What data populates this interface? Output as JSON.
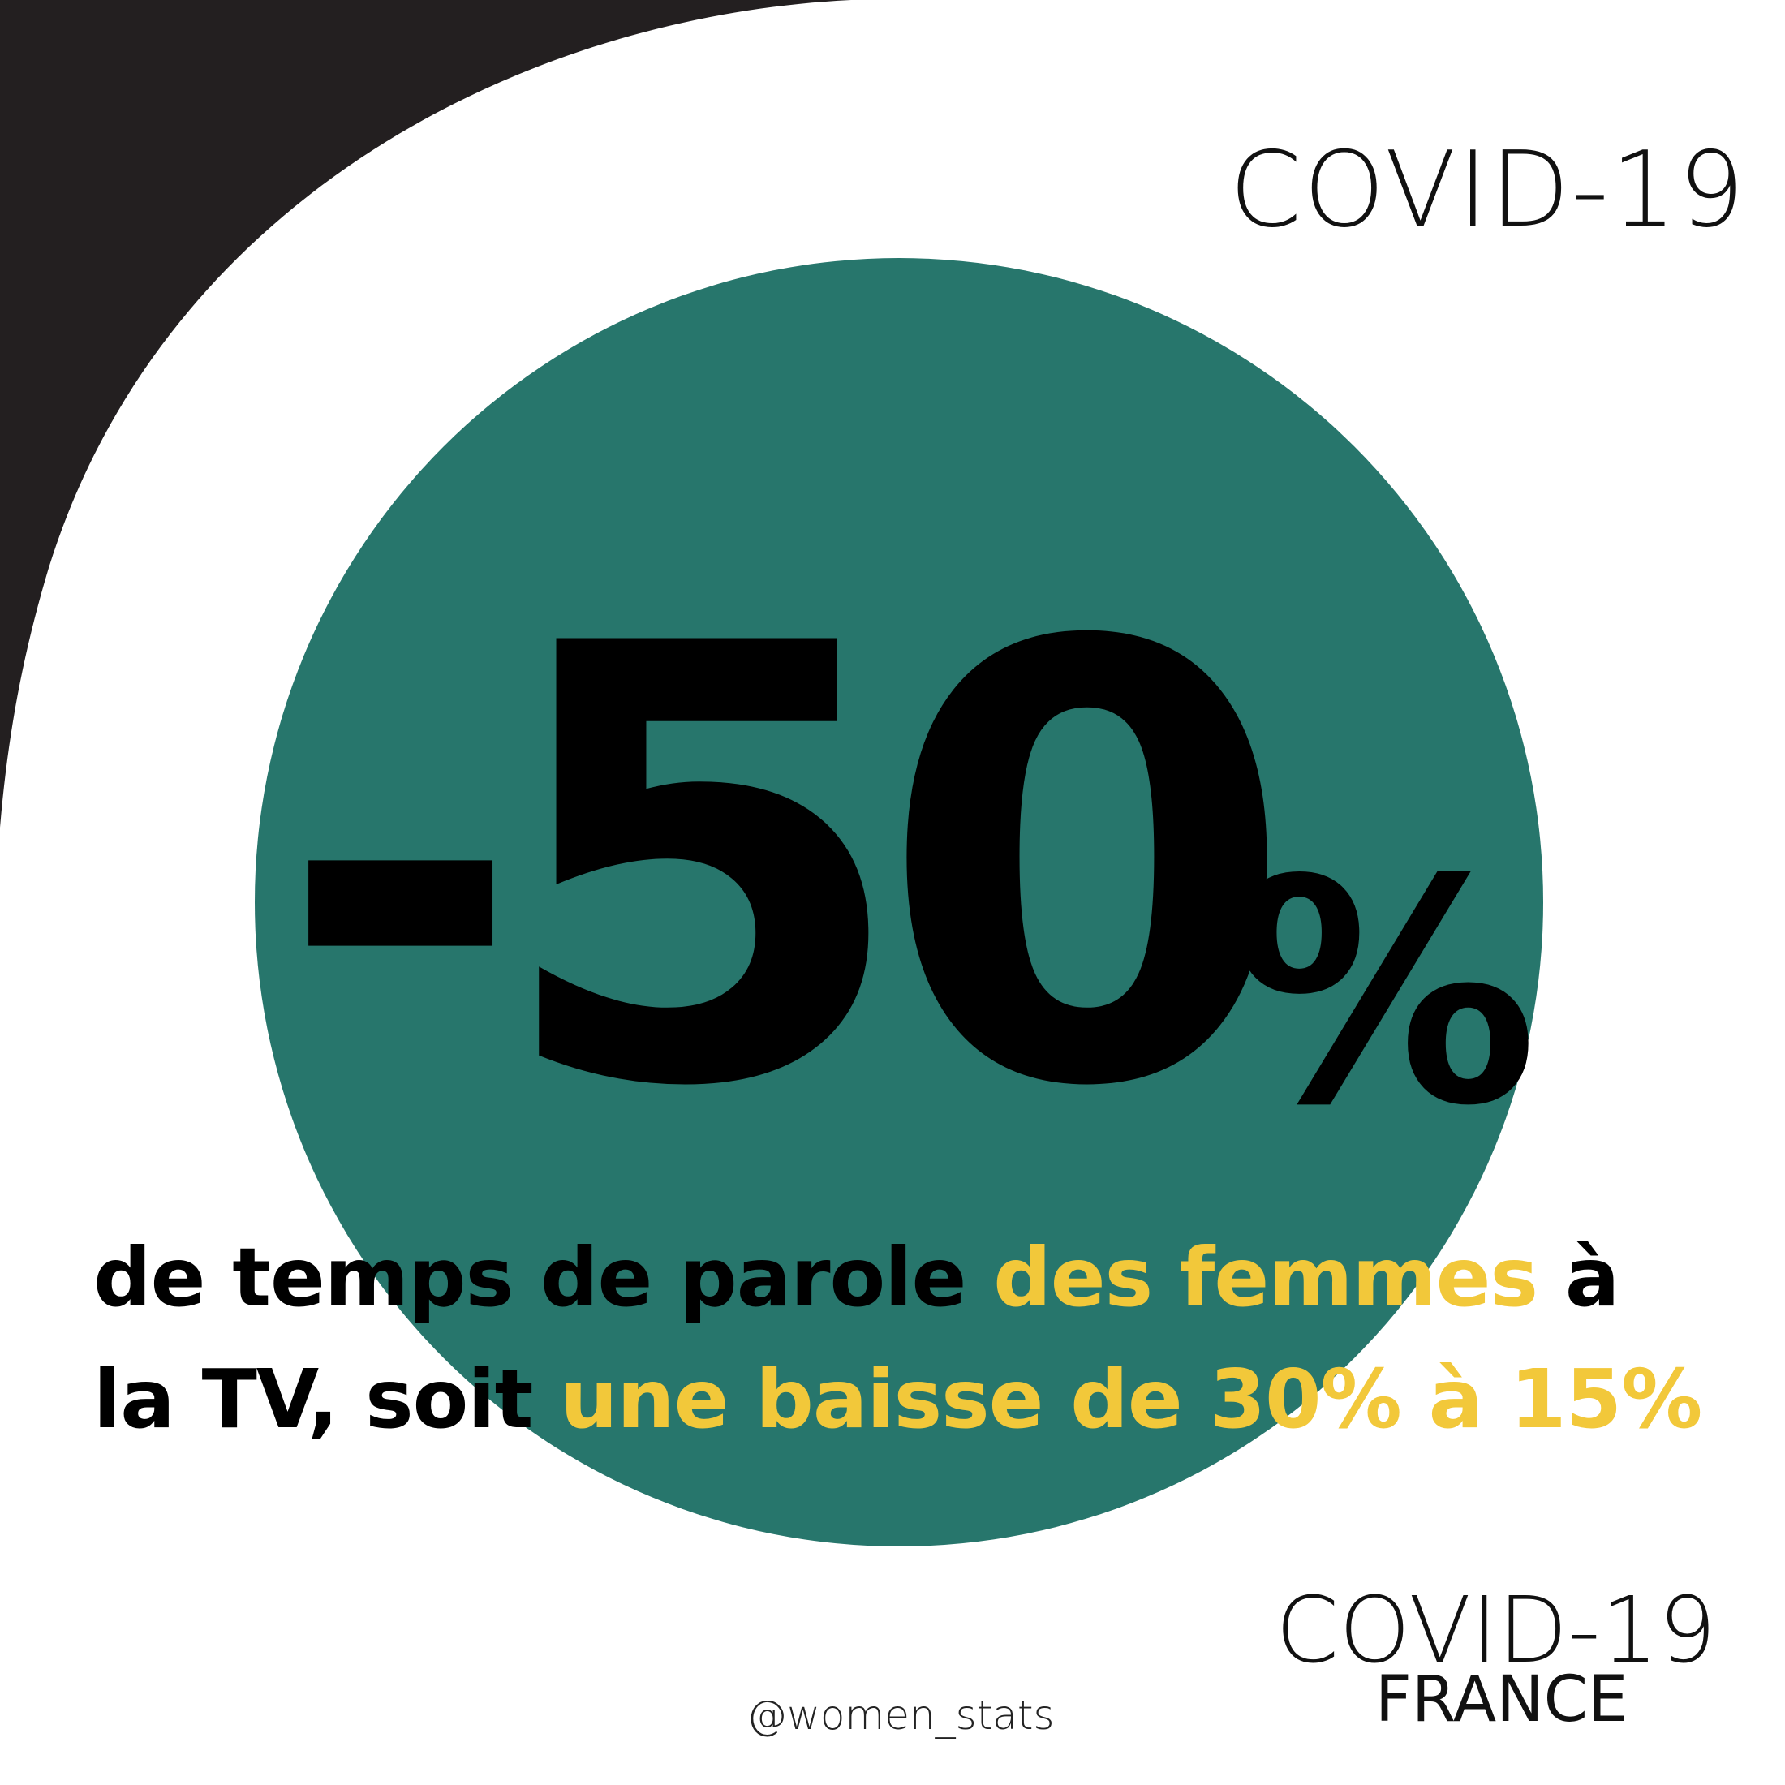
{
  "colors": {
    "teal": "#27766c",
    "yellow": "#f2c83a",
    "black": "#231f20",
    "background": "#ffffff"
  },
  "header": {
    "title": "COVID-19"
  },
  "stat": {
    "value": "-50",
    "unit": "%"
  },
  "description": {
    "line1_black": "de temps de parole ",
    "line1_yellow": "des femmes",
    "line1_end": " à",
    "line2_black": "la TV, soit ",
    "line2_yellow": "une baisse de 30% à 15%"
  },
  "footer": {
    "logo_title": "COVID-19",
    "logo_subtitle": "FRANCE",
    "handle": "@women_stats"
  }
}
